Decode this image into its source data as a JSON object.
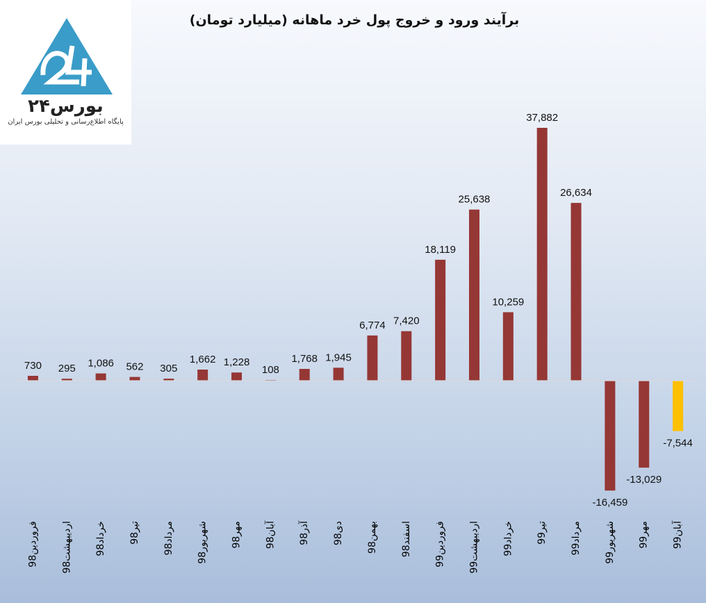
{
  "logo": {
    "brand": "بورس۲۴",
    "tagline": "پایگاه اطلاع‌رسانی و تحلیلی بورس ایران"
  },
  "colors": {
    "positive": "#953735",
    "negative": "#953735",
    "highlight": "#ffc000",
    "logo_blue": "#3a9cc8"
  },
  "chart_data": {
    "type": "bar",
    "title": "برآیند ورود و خروج پول خرد ماهانه (میلیارد تومان)",
    "xlabel": "",
    "ylabel": "",
    "grid": false,
    "legend": "none",
    "ylim": [
      -18000,
      40000
    ],
    "categories": [
      "فروردین98",
      "اردیبهشت98",
      "خرداد98",
      "تیر98",
      "مرداد98",
      "شهریور98",
      "مهر98",
      "آبان98",
      "آذر98",
      "دی98",
      "بهمن98",
      "اسفند98",
      "فروردین99",
      "اردیبهشت99",
      "خرداد99",
      "تیر99",
      "مرداد99",
      "شهریور99",
      "مهر99",
      "آبان99"
    ],
    "values": [
      730,
      295,
      1086,
      562,
      305,
      1662,
      1228,
      108,
      1768,
      1945,
      6774,
      7420,
      18119,
      25638,
      10259,
      37882,
      26634,
      -16459,
      -13029,
      -7544
    ],
    "value_labels": [
      "730",
      "295",
      "1,086",
      "562",
      "305",
      "1,662",
      "1,228",
      "108",
      "1,768",
      "1,945",
      "6,774",
      "7,420",
      "18,119",
      "25,638",
      "10,259",
      "37,882",
      "26,634",
      "-16,459",
      "-13,029",
      "-7,544"
    ],
    "highlight_index": 19
  }
}
